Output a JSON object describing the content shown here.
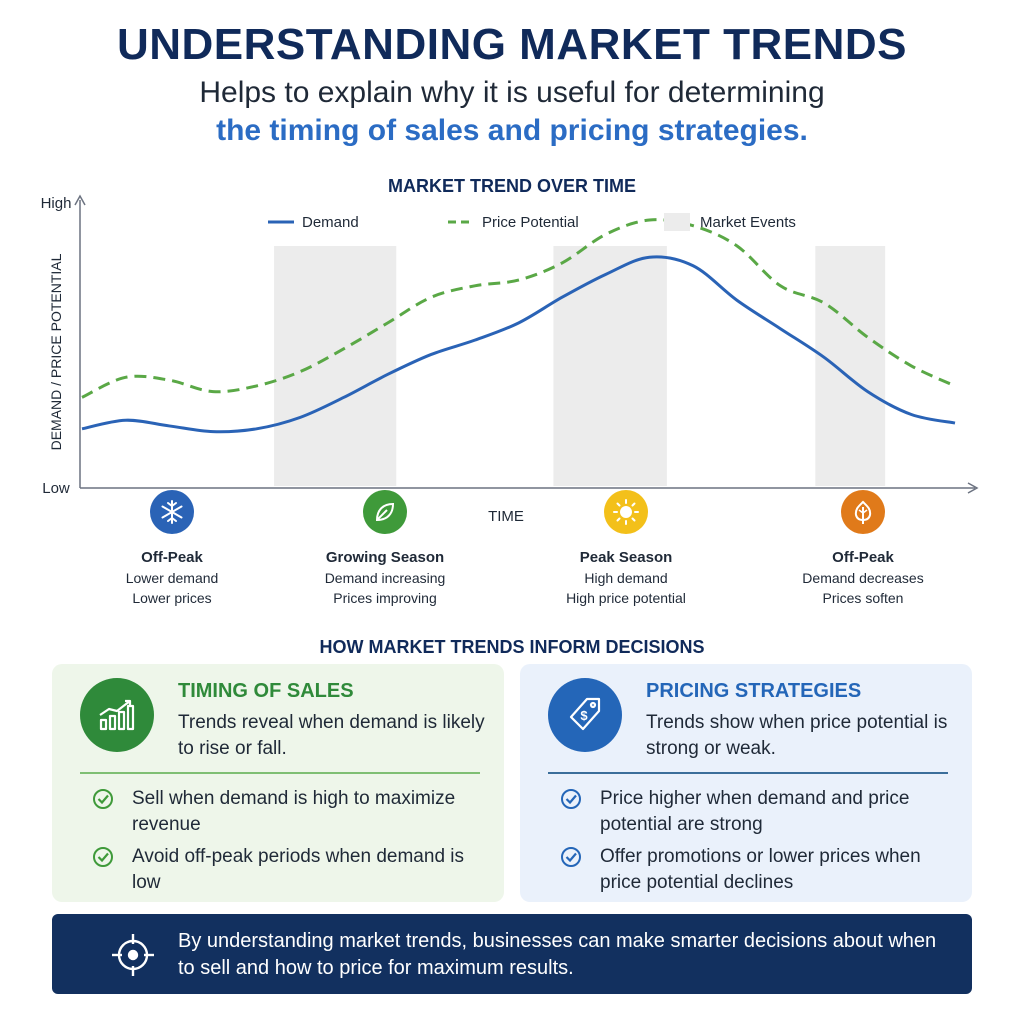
{
  "header": {
    "title": "UNDERSTANDING MARKET TRENDS",
    "subtitle_line1": "Helps to explain why it is useful for determining",
    "subtitle_line2": "the timing of sales and pricing strategies."
  },
  "chart_data": {
    "type": "line",
    "title": "MARKET TREND OVER TIME",
    "xlabel": "TIME",
    "ylabel": "DEMAND / PRICE POTENTIAL",
    "y_tick_labels": [
      "Low",
      "High"
    ],
    "ylim": [
      0,
      100
    ],
    "xlim": [
      0,
      100
    ],
    "legend_position": "top",
    "grid": false,
    "series": [
      {
        "name": "Demand",
        "style": "solid",
        "color": "#2a63b6",
        "x": [
          0,
          5,
          10,
          15,
          20,
          25,
          30,
          35,
          40,
          45,
          50,
          55,
          60,
          65,
          70,
          75,
          80,
          85,
          90,
          95,
          100
        ],
        "values": [
          20,
          23,
          21,
          19,
          20,
          24,
          31,
          39,
          46,
          51,
          57,
          66,
          74,
          80,
          77,
          65,
          55,
          45,
          33,
          25,
          22
        ]
      },
      {
        "name": "Price Potential",
        "style": "dashed",
        "color": "#5aa846",
        "x": [
          0,
          5,
          10,
          15,
          20,
          25,
          30,
          35,
          40,
          45,
          50,
          55,
          60,
          65,
          70,
          75,
          80,
          85,
          90,
          95,
          100
        ],
        "values": [
          31,
          38,
          37,
          33,
          35,
          40,
          48,
          57,
          66,
          70,
          72,
          78,
          88,
          93,
          91,
          84,
          70,
          64,
          52,
          42,
          35
        ]
      }
    ],
    "event_bands": [
      {
        "name": "Market Events",
        "from": 22,
        "to": 36
      },
      {
        "name": "Market Events",
        "from": 54,
        "to": 67
      },
      {
        "name": "Market Events",
        "from": 84,
        "to": 92
      }
    ],
    "legend": [
      "Demand",
      "Price Potential",
      "Market Events"
    ],
    "colors": {
      "demand": "#2a63b6",
      "price": "#5aa846",
      "events": "#ececec"
    }
  },
  "seasons": [
    {
      "icon": "snowflake-icon",
      "color": "#2a63b6",
      "title": "Off-Peak",
      "line1": "Lower demand",
      "line2": "Lower prices"
    },
    {
      "icon": "leaf-icon",
      "color": "#3f9a3a",
      "title": "Growing Season",
      "line1": "Demand increasing",
      "line2": "Prices improving"
    },
    {
      "icon": "sun-icon",
      "color": "#f3c01a",
      "title": "Peak Season",
      "line1": "High demand",
      "line2": "High price potential"
    },
    {
      "icon": "autumn-leaf-icon",
      "color": "#e07a1a",
      "title": "Off-Peak",
      "line1": "Demand decreases",
      "line2": "Prices soften"
    }
  ],
  "decisions": {
    "title": "HOW MARKET TRENDS INFORM DECISIONS",
    "timing": {
      "icon": "growth-chart-icon",
      "title": "TIMING OF SALES",
      "desc": "Trends reveal when demand is likely to rise or fall.",
      "bullets": [
        "Sell when demand is high to maximize revenue",
        "Avoid off-peak periods when demand is low"
      ]
    },
    "pricing": {
      "icon": "price-tag-icon",
      "title": "PRICING STRATEGIES",
      "desc": "Trends show when price potential is strong or weak.",
      "bullets": [
        "Price higher when demand and price potential are strong",
        "Offer promotions or lower prices when price potential declines"
      ]
    }
  },
  "banner": {
    "icon": "target-icon",
    "text": "By understanding market trends, businesses can make smarter decisions about when to sell and how to price for maximum results."
  }
}
